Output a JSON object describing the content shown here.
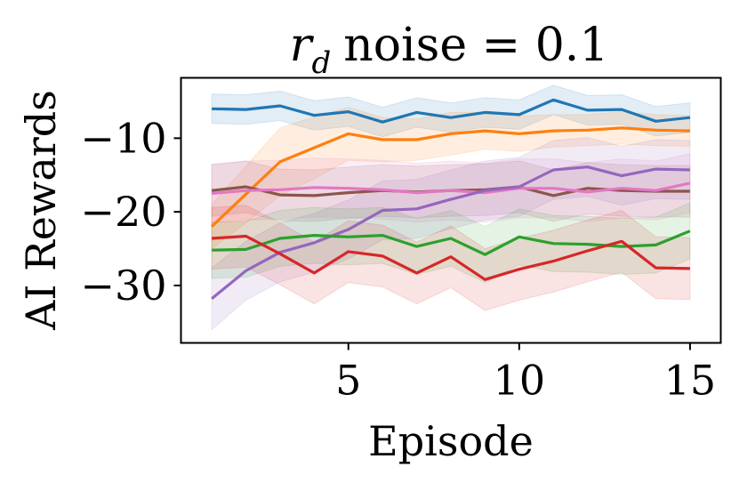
{
  "chart_data": {
    "type": "line",
    "title": "r_d noise = 0.1",
    "title_parts": {
      "symbol": "r",
      "subscript": "d",
      "rest": "noise = 0.1"
    },
    "xlabel": "Episode",
    "ylabel": "AI Rewards",
    "xlim": [
      0.1,
      15.9
    ],
    "ylim": [
      -37.8,
      -1.8
    ],
    "xticks": [
      5,
      10,
      15
    ],
    "xtick_labels": [
      "5",
      "10",
      "15"
    ],
    "yticks": [
      -10,
      -20,
      -30
    ],
    "ytick_labels": [
      "−10",
      "−20",
      "−30"
    ],
    "grid": false,
    "legend": "none",
    "x": [
      1,
      2,
      3,
      4,
      5,
      6,
      7,
      8,
      9,
      10,
      11,
      12,
      13,
      14,
      15
    ],
    "series": [
      {
        "color": "#1f77b4",
        "values": [
          -6.0,
          -6.1,
          -5.6,
          -6.9,
          -6.4,
          -7.8,
          -6.5,
          -7.2,
          -6.5,
          -6.8,
          -4.8,
          -6.2,
          -6.1,
          -7.7,
          -7.2
        ],
        "lower": [
          -8.0,
          -8.1,
          -7.6,
          -8.9,
          -8.4,
          -9.8,
          -8.5,
          -9.2,
          -8.5,
          -8.8,
          -6.8,
          -8.2,
          -8.1,
          -9.7,
          -9.2
        ],
        "upper": [
          -4.0,
          -4.1,
          -3.6,
          -4.9,
          -4.4,
          -5.8,
          -4.5,
          -5.2,
          -4.5,
          -4.8,
          -2.8,
          -4.2,
          -4.1,
          -5.7,
          -5.2
        ]
      },
      {
        "color": "#ff7f0e",
        "values": [
          -22.0,
          -17.6,
          -13.2,
          -11.3,
          -9.4,
          -10.2,
          -10.2,
          -9.4,
          -9.0,
          -9.4,
          -9.0,
          -8.9,
          -8.6,
          -8.9,
          -9.0
        ],
        "lower": [
          -25.0,
          -21.5,
          -17.8,
          -15.5,
          -13.0,
          -13.2,
          -13.0,
          -12.3,
          -11.5,
          -11.8,
          -11.2,
          -11.0,
          -10.8,
          -11.0,
          -11.1
        ],
        "upper": [
          -19.0,
          -13.8,
          -8.6,
          -7.1,
          -5.8,
          -7.2,
          -7.4,
          -6.5,
          -6.5,
          -7.0,
          -6.8,
          -6.8,
          -6.4,
          -6.8,
          -6.9
        ]
      },
      {
        "color": "#8c564b",
        "values": [
          -17.1,
          -16.6,
          -17.7,
          -17.8,
          -17.4,
          -17.1,
          -17.3,
          -17.1,
          -17.0,
          -16.6,
          -17.8,
          -16.8,
          -17.1,
          -17.2,
          -17.2
        ],
        "lower": [
          -20.6,
          -20.1,
          -21.2,
          -21.3,
          -20.9,
          -20.6,
          -20.8,
          -20.6,
          -20.5,
          -20.1,
          -21.3,
          -20.3,
          -20.6,
          -20.7,
          -20.7
        ],
        "upper": [
          -13.6,
          -13.1,
          -14.2,
          -14.3,
          -13.9,
          -13.6,
          -13.8,
          -13.6,
          -13.5,
          -13.1,
          -14.3,
          -13.3,
          -13.6,
          -13.7,
          -13.7
        ]
      },
      {
        "color": "#e377c2",
        "values": [
          -17.5,
          -17.1,
          -17.0,
          -16.7,
          -16.8,
          -17.0,
          -17.4,
          -17.1,
          -17.4,
          -16.8,
          -16.8,
          -17.3,
          -16.8,
          -17.1,
          -16.1
        ],
        "lower": [
          -21.5,
          -21.1,
          -21.0,
          -20.7,
          -20.8,
          -21.0,
          -21.4,
          -21.1,
          -21.4,
          -20.8,
          -20.8,
          -21.3,
          -20.8,
          -21.1,
          -20.1
        ],
        "upper": [
          -13.5,
          -13.1,
          -13.0,
          -12.7,
          -12.8,
          -13.0,
          -13.4,
          -13.1,
          -13.4,
          -12.8,
          -12.8,
          -13.3,
          -12.8,
          -13.1,
          -12.1
        ]
      },
      {
        "color": "#9467bd",
        "values": [
          -31.8,
          -28.0,
          -25.5,
          -24.2,
          -22.4,
          -19.8,
          -19.6,
          -18.3,
          -17.1,
          -16.6,
          -14.3,
          -13.9,
          -15.1,
          -14.2,
          -14.3
        ],
        "lower": [
          -36.0,
          -32.0,
          -29.5,
          -28.2,
          -26.4,
          -23.8,
          -23.6,
          -22.3,
          -21.1,
          -20.6,
          -18.3,
          -17.9,
          -19.1,
          -18.2,
          -18.3
        ],
        "upper": [
          -27.6,
          -24.0,
          -21.5,
          -20.2,
          -18.4,
          -15.8,
          -15.6,
          -14.3,
          -13.1,
          -12.6,
          -10.3,
          -9.9,
          -11.1,
          -10.2,
          -10.3
        ]
      },
      {
        "color": "#2ca02c",
        "values": [
          -25.2,
          -25.1,
          -23.6,
          -23.2,
          -23.4,
          -23.2,
          -24.7,
          -23.6,
          -25.8,
          -23.4,
          -24.3,
          -24.4,
          -24.7,
          -24.5,
          -22.6
        ],
        "lower": [
          -29.0,
          -28.9,
          -27.4,
          -27.0,
          -27.2,
          -27.0,
          -28.5,
          -27.4,
          -29.6,
          -27.2,
          -28.1,
          -28.2,
          -28.5,
          -28.3,
          -26.4
        ],
        "upper": [
          -21.4,
          -21.3,
          -19.8,
          -19.4,
          -19.6,
          -19.4,
          -20.9,
          -19.8,
          -22.0,
          -19.6,
          -20.5,
          -20.6,
          -20.9,
          -20.7,
          -18.8
        ]
      },
      {
        "color": "#d62728",
        "values": [
          -23.6,
          -23.3,
          -25.7,
          -28.3,
          -25.4,
          -26.0,
          -28.3,
          -26.1,
          -29.2,
          -27.8,
          -26.7,
          -25.3,
          -24.0,
          -27.6,
          -27.7
        ],
        "lower": [
          -27.8,
          -27.5,
          -29.9,
          -32.5,
          -29.6,
          -30.2,
          -32.5,
          -30.3,
          -33.4,
          -32.0,
          -30.9,
          -29.5,
          -28.2,
          -31.8,
          -31.9
        ],
        "upper": [
          -19.4,
          -19.1,
          -21.5,
          -24.1,
          -21.2,
          -21.8,
          -24.1,
          -21.9,
          -25.0,
          -23.6,
          -22.5,
          -21.1,
          -19.8,
          -23.4,
          -23.5
        ]
      }
    ]
  }
}
